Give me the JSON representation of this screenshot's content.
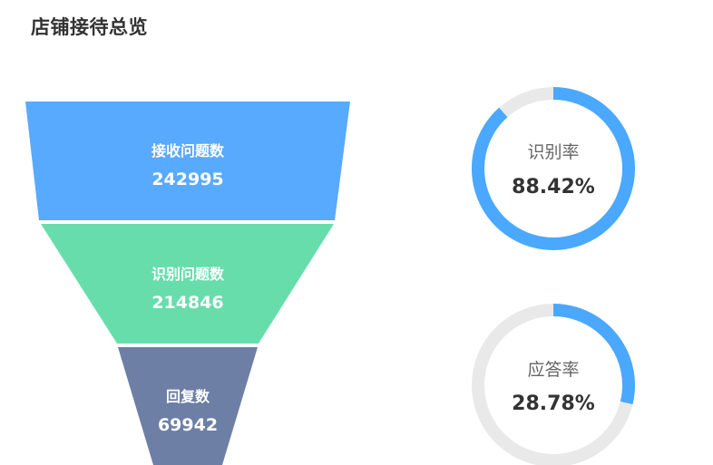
{
  "page": {
    "title": "店铺接待总览"
  },
  "chart_data": [
    {
      "type": "funnel",
      "stages": [
        {
          "label": "接收问题数",
          "value": 242995,
          "color": "#58aaff"
        },
        {
          "label": "识别问题数",
          "value": 214846,
          "color": "#67ddab"
        },
        {
          "label": "回复数",
          "value": 69942,
          "color": "#6d7fa4"
        }
      ]
    },
    {
      "type": "gauge",
      "gauges": [
        {
          "label": "识别率",
          "value_text": "88.42%",
          "value": 88.42,
          "color": "#4aa8ff",
          "track_color": "#e9e9e9"
        },
        {
          "label": "应答率",
          "value_text": "28.78%",
          "value": 28.78,
          "color": "#4aa8ff",
          "track_color": "#e9e9e9"
        }
      ]
    }
  ]
}
